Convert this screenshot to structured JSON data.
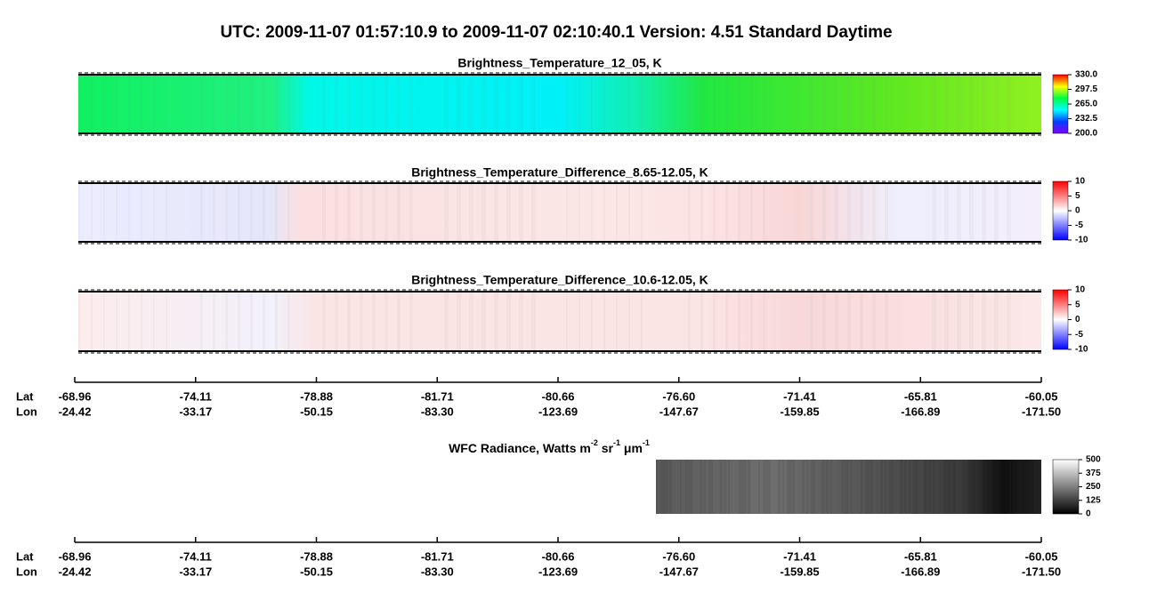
{
  "title": "UTC:  2009-11-07   01:57:10.9  to  2009-11-07   02:10:40.1    Version: 4.51  Standard Daytime",
  "panels": [
    {
      "title": "Brightness_Temperature_12_05, K",
      "colorbar": {
        "lim": [
          200,
          330
        ],
        "colors": [
          "#8000ff",
          "#0040ff",
          "#00ffff",
          "#00ff40",
          "#ffff00",
          "#ff0000"
        ],
        "ticks": [
          {
            "value": 200,
            "label": "200.0"
          },
          232.5,
          {
            "value": 265,
            "label": "265.0"
          },
          297.5,
          {
            "value": 330,
            "label": "330.0"
          }
        ]
      }
    },
    {
      "title": "Brightness_Temperature_Difference_8.65-12.05, K",
      "colorbar": {
        "lim": [
          -10,
          10
        ],
        "colors": [
          "#0000ff",
          "#ffffff",
          "#ff0000"
        ],
        "ticks": [
          -10,
          -5,
          0,
          5,
          10
        ]
      }
    },
    {
      "title": "Brightness_Temperature_Difference_10.6-12.05, K",
      "colorbar": {
        "lim": [
          -10,
          10
        ],
        "colors": [
          "#0000ff",
          "#ffffff",
          "#ff0000"
        ],
        "ticks": [
          -10,
          -5,
          0,
          5,
          10
        ]
      }
    },
    {
      "title_parts": [
        "WFC Radiance, Watts m",
        "-2",
        " sr",
        "-1",
        " μm",
        "-1"
      ],
      "colorbar": {
        "lim": [
          0,
          500
        ],
        "colors": [
          "#000000",
          "#ffffff"
        ],
        "ticks": [
          0,
          125,
          250,
          375,
          500
        ]
      }
    }
  ],
  "track_axes": [
    {
      "rows": [
        {
          "name": "Lat",
          "labels": [
            "-68.96",
            "-74.11",
            "-78.88",
            "-81.71",
            "-80.66",
            "-76.60",
            "-71.41",
            "-65.81",
            "-60.05"
          ]
        },
        {
          "name": "Lon",
          "labels": [
            "-24.42",
            "-33.17",
            "-50.15",
            "-83.30",
            "-123.69",
            "-147.67",
            "-159.85",
            "-166.89",
            "-171.50"
          ]
        }
      ]
    },
    {
      "rows": [
        {
          "name": "Lat",
          "labels": [
            "-68.96",
            "-74.11",
            "-78.88",
            "-81.71",
            "-80.66",
            "-76.60",
            "-71.41",
            "-65.81",
            "-60.05"
          ]
        },
        {
          "name": "Lon",
          "labels": [
            "-24.42",
            "-33.17",
            "-50.15",
            "-83.30",
            "-123.69",
            "-147.67",
            "-159.85",
            "-166.89",
            "-171.50"
          ]
        }
      ]
    }
  ]
}
